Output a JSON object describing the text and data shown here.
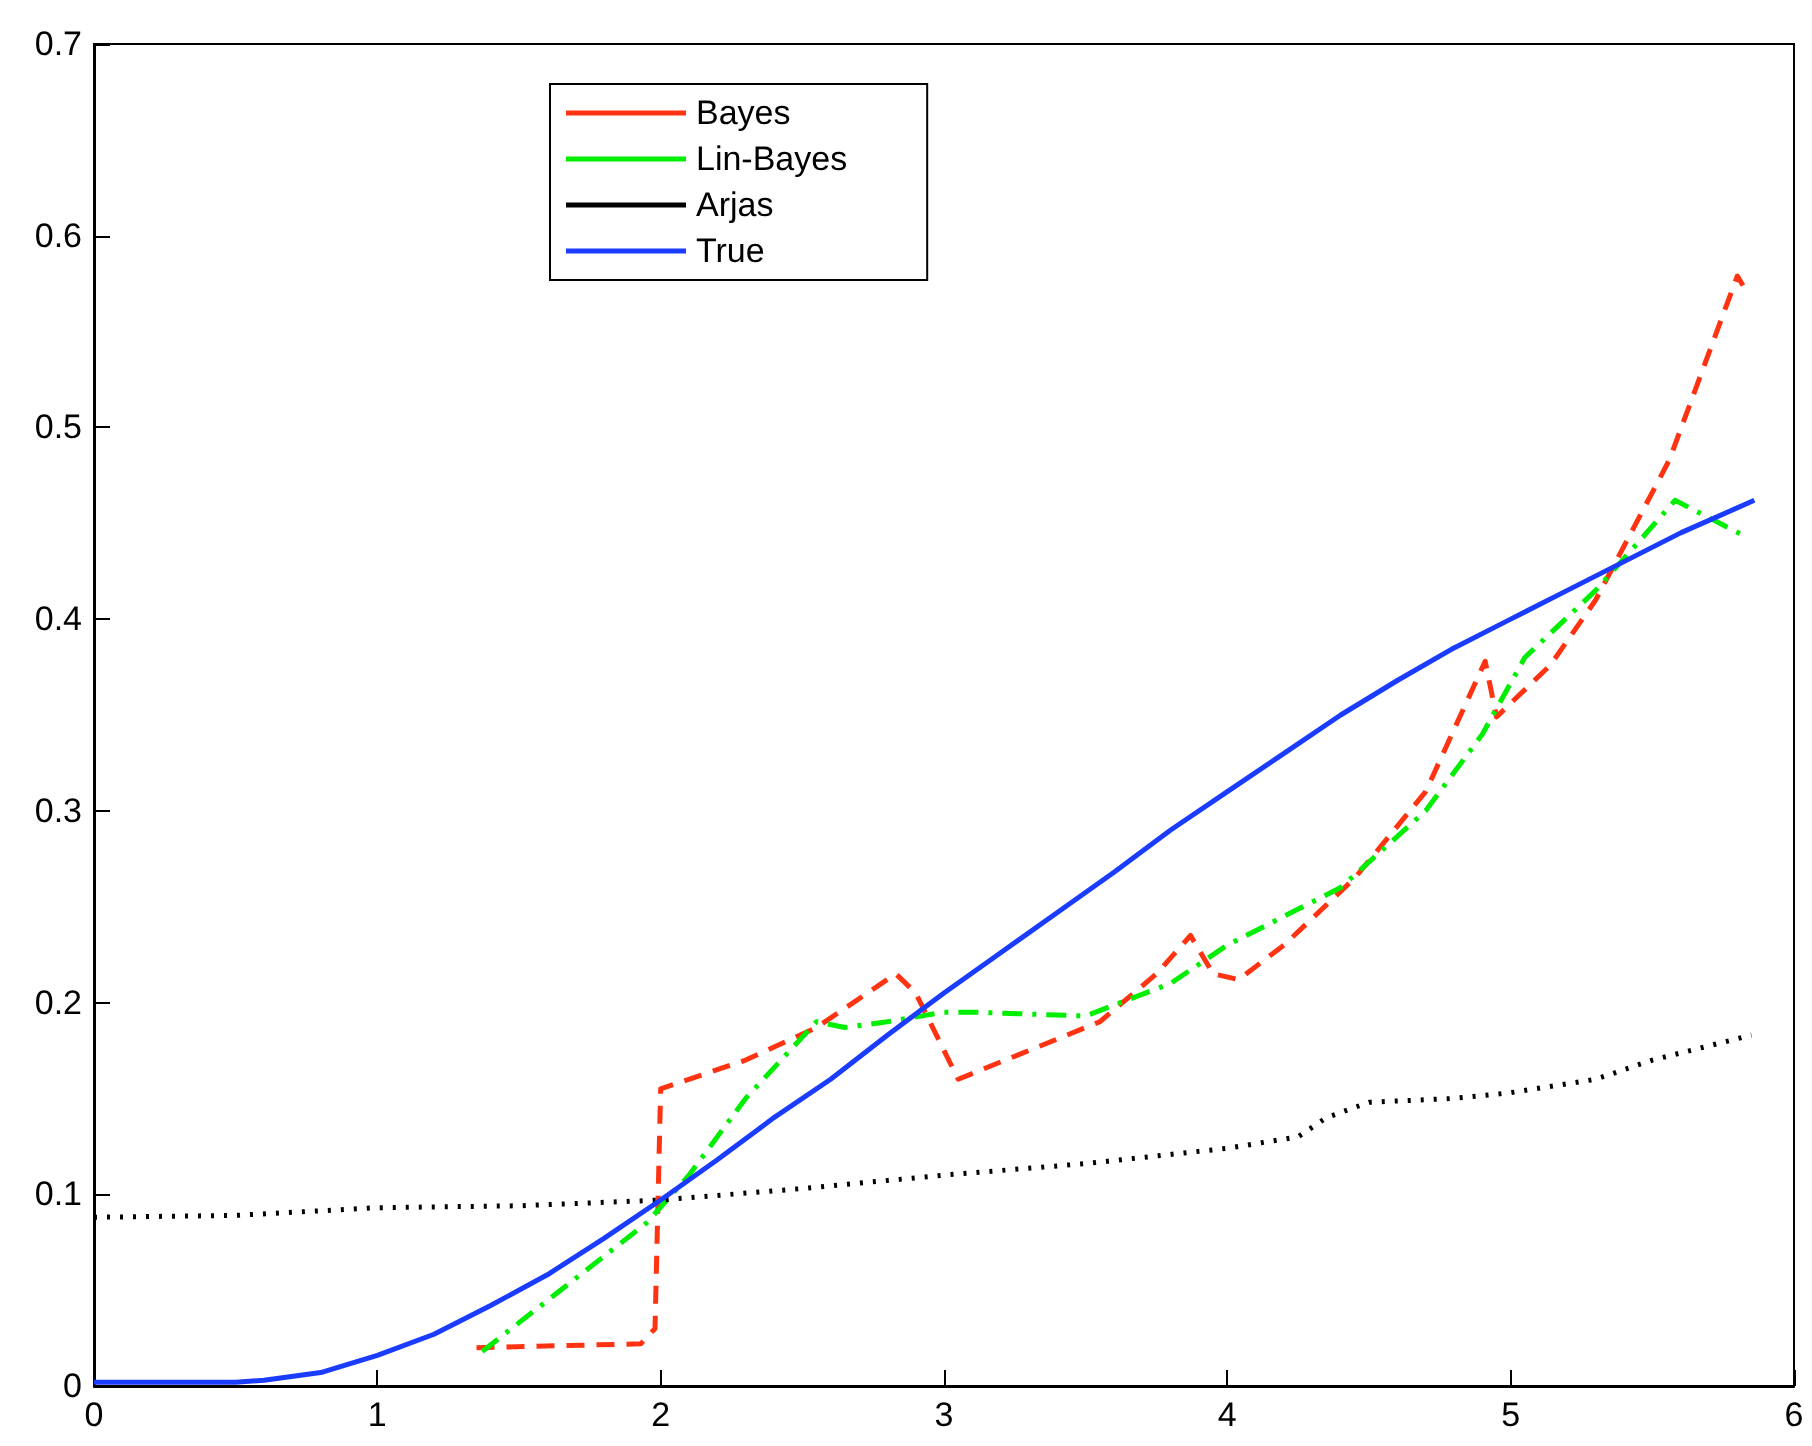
{
  "chart_data": {
    "type": "line",
    "xlim": [
      0,
      6
    ],
    "ylim": [
      0,
      0.7
    ],
    "xticks": [
      0,
      1,
      2,
      3,
      4,
      5,
      6
    ],
    "yticks": [
      0,
      0.1,
      0.2,
      0.3,
      0.4,
      0.5,
      0.6,
      0.7
    ],
    "grid": false,
    "legend": "top left",
    "marker": "none",
    "series": [
      {
        "name": "Bayes",
        "color": "#ff3311",
        "line_style": "dashed",
        "x": [
          1.35,
          1.93,
          1.98,
          2.0,
          2.3,
          2.55,
          2.83,
          2.9,
          3.05,
          3.3,
          3.55,
          3.75,
          3.87,
          3.95,
          4.04,
          4.2,
          4.45,
          4.7,
          4.91,
          4.95,
          5.14,
          5.3,
          5.56,
          5.8,
          5.82
        ],
        "values": [
          0.02,
          0.022,
          0.03,
          0.155,
          0.17,
          0.187,
          0.215,
          0.205,
          0.16,
          0.175,
          0.19,
          0.215,
          0.235,
          0.215,
          0.212,
          0.23,
          0.265,
          0.31,
          0.378,
          0.349,
          0.376,
          0.41,
          0.483,
          0.579,
          0.574
        ]
      },
      {
        "name": "Lin-Bayes",
        "color": "#00ee00",
        "line_style": "dashdot",
        "x": [
          1.37,
          1.95,
          2.1,
          2.3,
          2.55,
          2.65,
          2.8,
          3.0,
          3.1,
          3.5,
          3.8,
          4.0,
          4.2,
          4.4,
          4.7,
          4.9,
          5.05,
          5.3,
          5.45,
          5.58,
          5.83
        ],
        "values": [
          0.018,
          0.085,
          0.11,
          0.15,
          0.19,
          0.187,
          0.19,
          0.195,
          0.195,
          0.193,
          0.21,
          0.23,
          0.245,
          0.26,
          0.3,
          0.34,
          0.38,
          0.415,
          0.44,
          0.462,
          0.443
        ]
      },
      {
        "name": "Arjas",
        "color": "#000000",
        "line_style": "dotted",
        "x": [
          0,
          0.5,
          1.0,
          1.5,
          2.0,
          2.5,
          3.0,
          3.5,
          4.0,
          4.25,
          4.35,
          4.5,
          4.8,
          5.0,
          5.3,
          5.5,
          5.85
        ],
        "values": [
          0.088,
          0.089,
          0.093,
          0.094,
          0.097,
          0.103,
          0.11,
          0.116,
          0.124,
          0.13,
          0.14,
          0.148,
          0.15,
          0.153,
          0.16,
          0.17,
          0.183
        ]
      },
      {
        "name": "True",
        "color": "#1a3cff",
        "line_style": "solid",
        "x": [
          0,
          0.5,
          0.6,
          0.8,
          1.0,
          1.2,
          1.4,
          1.6,
          1.8,
          2.0,
          2.2,
          2.4,
          2.6,
          2.8,
          3.0,
          3.2,
          3.4,
          3.6,
          3.8,
          4.0,
          4.2,
          4.4,
          4.6,
          4.8,
          5.0,
          5.2,
          5.4,
          5.6,
          5.86
        ],
        "values": [
          0.002,
          0.002,
          0.003,
          0.007,
          0.016,
          0.027,
          0.042,
          0.058,
          0.077,
          0.097,
          0.118,
          0.14,
          0.16,
          0.183,
          0.205,
          0.226,
          0.247,
          0.268,
          0.29,
          0.31,
          0.33,
          0.35,
          0.368,
          0.385,
          0.4,
          0.415,
          0.43,
          0.445,
          0.462
        ]
      }
    ]
  }
}
